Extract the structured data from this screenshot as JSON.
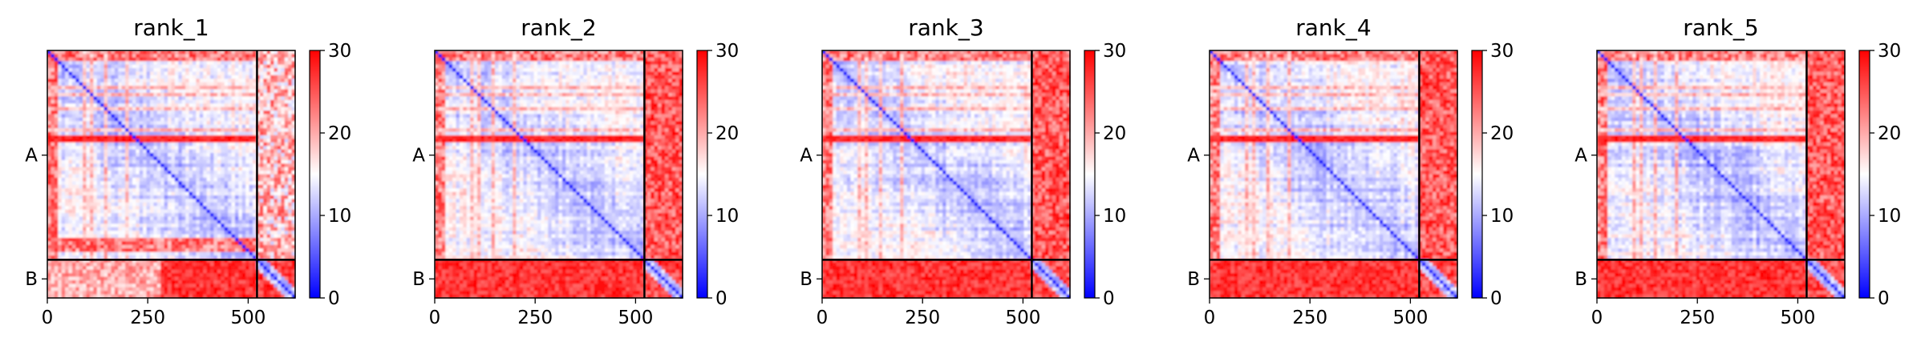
{
  "colors": {
    "low": "#0000ff",
    "mid": "#ffffff",
    "high": "#ff0000",
    "axis": "#000000",
    "chain_boundary": "#000000"
  },
  "chart_data": [
    {
      "type": "heatmap",
      "title": "rank_1",
      "xticks": [
        0,
        250,
        500
      ],
      "xlim": [
        0,
        617
      ],
      "ylim": [
        617,
        0
      ],
      "y_chain_labels": [
        "A",
        "B"
      ],
      "chain_boundary": 522,
      "colorbar": {
        "vmin": 0,
        "vmax": 30,
        "ticks": [
          0,
          10,
          20,
          30
        ],
        "cmap": "bwr"
      },
      "pae_summary": {
        "intra_A": "mostly low (blue), red band near residue 230",
        "A_B": "high (red) with white region around 0-250",
        "intra_B": "high off-diagonal"
      }
    },
    {
      "type": "heatmap",
      "title": "rank_2",
      "xticks": [
        0,
        250,
        500
      ],
      "xlim": [
        0,
        617
      ],
      "ylim": [
        617,
        0
      ],
      "y_chain_labels": [
        "A",
        "B"
      ],
      "chain_boundary": 522,
      "colorbar": {
        "vmin": 0,
        "vmax": 30,
        "ticks": [
          0,
          10,
          20,
          30
        ],
        "cmap": "bwr"
      },
      "pae_summary": {
        "intra_A": "mostly low (blue)",
        "A_B": "high (red)",
        "intra_B": "low near diagonal"
      }
    },
    {
      "type": "heatmap",
      "title": "rank_3",
      "xticks": [
        0,
        250,
        500
      ],
      "xlim": [
        0,
        617
      ],
      "ylim": [
        617,
        0
      ],
      "y_chain_labels": [
        "A",
        "B"
      ],
      "chain_boundary": 522,
      "colorbar": {
        "vmin": 0,
        "vmax": 30,
        "ticks": [
          0,
          10,
          20,
          30
        ],
        "cmap": "bwr"
      },
      "pae_summary": {
        "intra_A": "mostly low (blue)",
        "A_B": "high (red)",
        "intra_B": "low near diagonal"
      }
    },
    {
      "type": "heatmap",
      "title": "rank_4",
      "xticks": [
        0,
        250,
        500
      ],
      "xlim": [
        0,
        617
      ],
      "ylim": [
        617,
        0
      ],
      "y_chain_labels": [
        "A",
        "B"
      ],
      "chain_boundary": 522,
      "colorbar": {
        "vmin": 0,
        "vmax": 30,
        "ticks": [
          0,
          10,
          20,
          30
        ],
        "cmap": "bwr"
      },
      "pae_summary": {
        "intra_A": "mostly low (blue)",
        "A_B": "high (red)",
        "intra_B": "low near diagonal"
      }
    },
    {
      "type": "heatmap",
      "title": "rank_5",
      "xticks": [
        0,
        250,
        500
      ],
      "xlim": [
        0,
        617
      ],
      "ylim": [
        617,
        0
      ],
      "y_chain_labels": [
        "A",
        "B"
      ],
      "chain_boundary": 522,
      "colorbar": {
        "vmin": 0,
        "vmax": 30,
        "ticks": [
          0,
          10,
          20,
          30
        ],
        "cmap": "bwr"
      },
      "pae_summary": {
        "intra_A": "mostly low (blue)",
        "A_B": "high (red)",
        "intra_B": "low near diagonal"
      }
    }
  ]
}
